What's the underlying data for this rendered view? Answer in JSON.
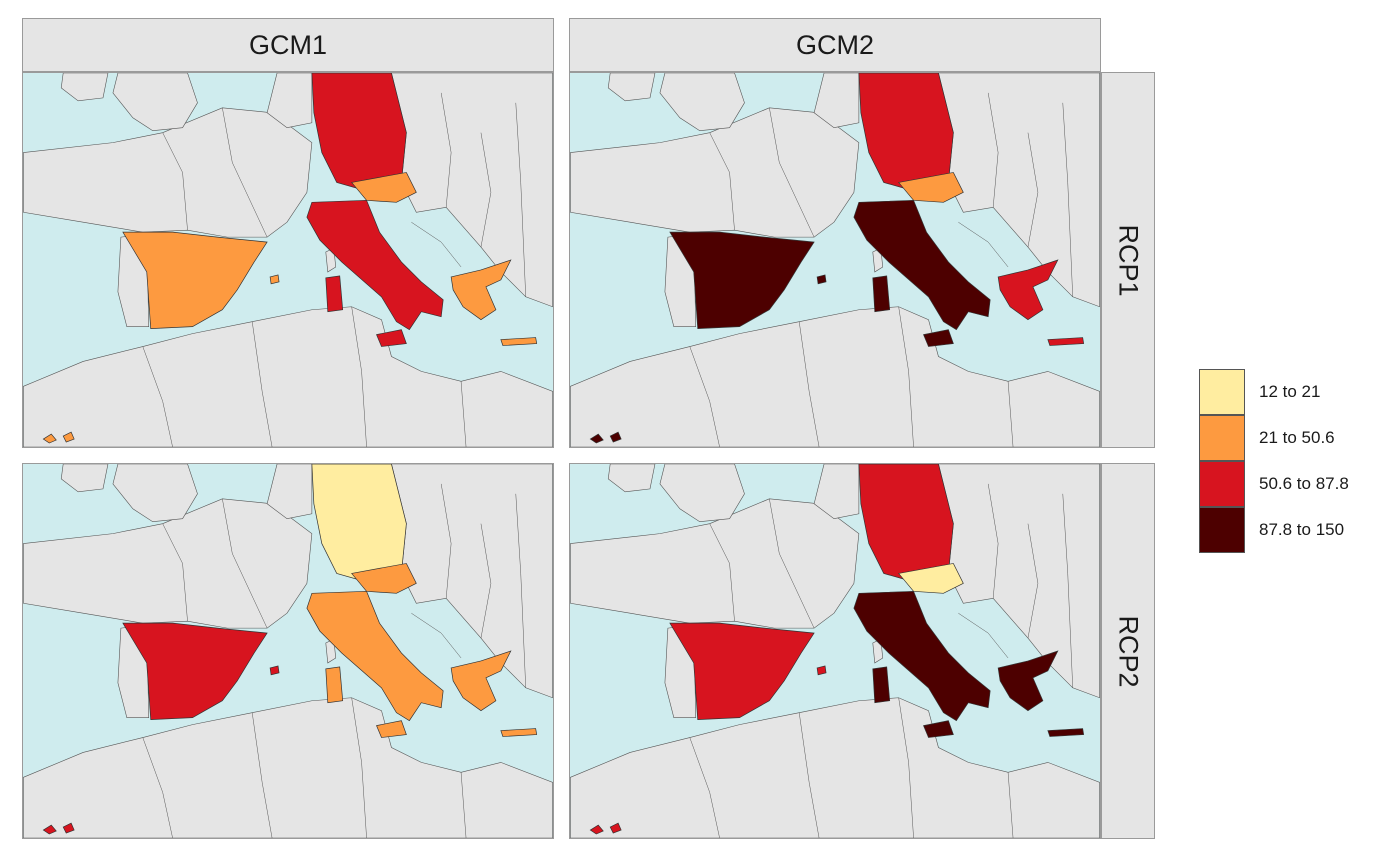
{
  "facets": {
    "columns": [
      {
        "label": "GCM1"
      },
      {
        "label": "GCM2"
      }
    ],
    "rows": [
      {
        "label": "RCP1"
      },
      {
        "label": "RCP2"
      }
    ]
  },
  "colors": {
    "sea": "#cfecee",
    "land": "#e5e5e5",
    "border": "#555555",
    "class_1": "#ffeda0",
    "class_2": "#fd9a40",
    "class_3": "#d7141f",
    "class_4": "#4d0000"
  },
  "legend": {
    "items": [
      {
        "label": "12 to 21",
        "color": "#ffeda0"
      },
      {
        "label": "21 to 50.6",
        "color": "#fd9a40"
      },
      {
        "label": "50.6 to 87.8",
        "color": "#d7141f"
      },
      {
        "label": "87.8 to 150",
        "color": "#4d0000"
      }
    ]
  },
  "map_data": {
    "panels": [
      {
        "gcm": "GCM1",
        "rcp": "RCP1",
        "classes": {
          "germany": 3,
          "austria": 2,
          "italy": 3,
          "spain": 2,
          "greece": 2
        }
      },
      {
        "gcm": "GCM2",
        "rcp": "RCP1",
        "classes": {
          "germany": 3,
          "austria": 2,
          "italy": 4,
          "spain": 4,
          "greece": 3
        }
      },
      {
        "gcm": "GCM1",
        "rcp": "RCP2",
        "classes": {
          "germany": 1,
          "austria": 2,
          "italy": 2,
          "spain": 3,
          "greece": 2
        }
      },
      {
        "gcm": "GCM2",
        "rcp": "RCP2",
        "classes": {
          "germany": 3,
          "austria": 1,
          "italy": 4,
          "spain": 3,
          "greece": 4
        }
      }
    ]
  }
}
